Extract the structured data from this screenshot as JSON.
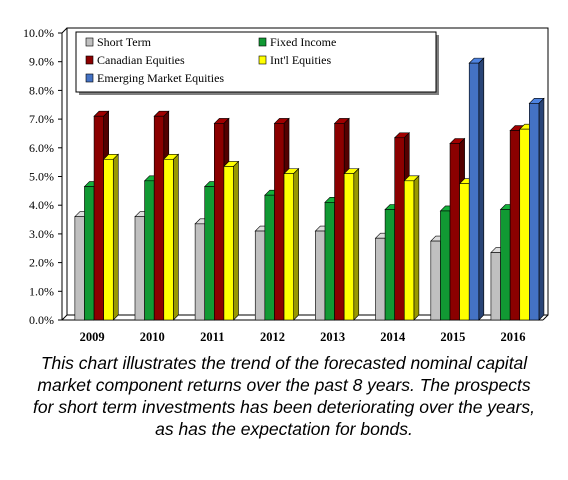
{
  "chart_data": {
    "type": "bar",
    "categories": [
      "2009",
      "2010",
      "2011",
      "2012",
      "2013",
      "2014",
      "2015",
      "2016"
    ],
    "series": [
      {
        "name": "Short Term",
        "color": "#c0c0c0",
        "values": [
          3.6,
          3.6,
          3.35,
          3.1,
          3.1,
          2.85,
          2.75,
          2.35
        ]
      },
      {
        "name": "Fixed Income",
        "color": "#119933",
        "values": [
          4.65,
          4.85,
          4.65,
          4.35,
          4.1,
          3.85,
          3.8,
          3.85
        ]
      },
      {
        "name": "Canadian Equities",
        "color": "#8b0000",
        "values": [
          7.1,
          7.1,
          6.85,
          6.85,
          6.85,
          6.35,
          6.15,
          6.6
        ]
      },
      {
        "name": "Int'l Equities",
        "color": "#ffff00",
        "values": [
          5.6,
          5.6,
          5.35,
          5.1,
          5.1,
          4.85,
          4.75,
          6.65
        ]
      },
      {
        "name": "Emerging Market Equities",
        "color": "#4472c4",
        "values": [
          null,
          null,
          null,
          null,
          null,
          null,
          8.95,
          7.55
        ]
      }
    ],
    "yticks": [
      "0.0%",
      "1.0%",
      "2.0%",
      "3.0%",
      "4.0%",
      "5.0%",
      "6.0%",
      "7.0%",
      "8.0%",
      "9.0%",
      "10.0%"
    ],
    "ylim": [
      0,
      10
    ],
    "grid": false,
    "legend_position": "top-left"
  },
  "caption": "This chart illustrates the trend of the forecasted nominal capital market component returns over the past 8 years. The prospects for short term investments has been deteriorating over the years, as has the expectation for bonds."
}
